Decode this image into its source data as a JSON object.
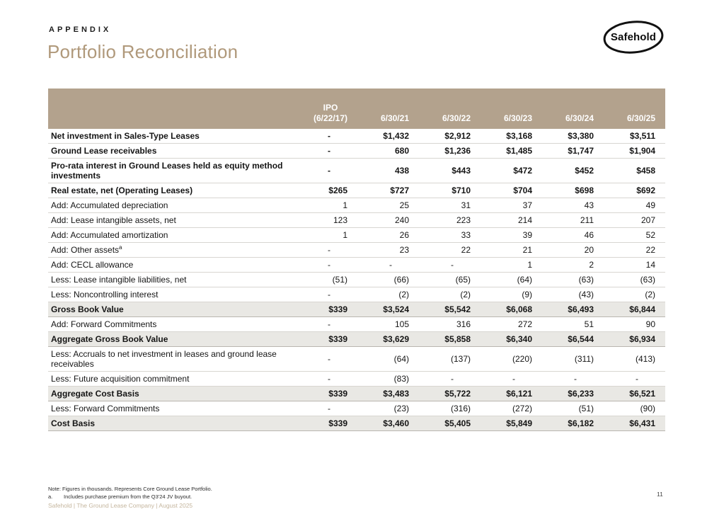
{
  "header": {
    "eyebrow": "APPENDIX",
    "title": "Portfolio Reconciliation",
    "logo_text": "Safehold"
  },
  "colors": {
    "header_bg": "#b3a28d",
    "title_text": "#b0997b",
    "total_row_bg": "#e9e8e4",
    "footer_text": "#c5b69e"
  },
  "table": {
    "columns": [
      {
        "label": ""
      },
      {
        "label": "IPO",
        "sub": "(6/22/17)"
      },
      {
        "label": "6/30/21"
      },
      {
        "label": "6/30/22"
      },
      {
        "label": "6/30/23"
      },
      {
        "label": "6/30/24"
      },
      {
        "label": "6/30/25"
      }
    ],
    "rows": [
      {
        "label": "Net investment in Sales-Type Leases",
        "style": "bold",
        "values": [
          "-",
          "$1,432",
          "$2,912",
          "$3,168",
          "$3,380",
          "$3,511"
        ]
      },
      {
        "label": "Ground Lease receivables",
        "style": "bold",
        "values": [
          "-",
          "680",
          "$1,236",
          "$1,485",
          "$1,747",
          "$1,904"
        ]
      },
      {
        "label": "Pro-rata interest in Ground Leases held as equity method investments",
        "style": "bold",
        "values": [
          "-",
          "438",
          "$443",
          "$472",
          "$452",
          "$458"
        ]
      },
      {
        "label": "Real estate, net (Operating Leases)",
        "style": "bold",
        "values": [
          "$265",
          "$727",
          "$710",
          "$704",
          "$698",
          "$692"
        ]
      },
      {
        "label": "Add: Accumulated depreciation",
        "values": [
          "1",
          "25",
          "31",
          "37",
          "43",
          "49"
        ]
      },
      {
        "label": "Add: Lease intangible assets, net",
        "values": [
          "123",
          "240",
          "223",
          "214",
          "211",
          "207"
        ]
      },
      {
        "label": "Add: Accumulated amortization",
        "values": [
          "1",
          "26",
          "33",
          "39",
          "46",
          "52"
        ]
      },
      {
        "label": "Add: Other assets",
        "sup": "a",
        "values": [
          "-",
          "23",
          "22",
          "21",
          "20",
          "22"
        ]
      },
      {
        "label": "Add: CECL allowance",
        "values": [
          "-",
          "-",
          "-",
          "1",
          "2",
          "14"
        ]
      },
      {
        "label": "Less: Lease intangible liabilities, net",
        "values": [
          "(51)",
          "(66)",
          "(65)",
          "(64)",
          "(63)",
          "(63)"
        ]
      },
      {
        "label": "Less: Noncontrolling interest",
        "values": [
          "-",
          "(2)",
          "(2)",
          "(9)",
          "(43)",
          "(2)"
        ]
      },
      {
        "label": "Gross Book Value",
        "style": "total",
        "values": [
          "$339",
          "$3,524",
          "$5,542",
          "$6,068",
          "$6,493",
          "$6,844"
        ]
      },
      {
        "label": "Add: Forward Commitments",
        "values": [
          "-",
          "105",
          "316",
          "272",
          "51",
          "90"
        ]
      },
      {
        "label": "Aggregate Gross Book Value",
        "style": "total",
        "values": [
          "$339",
          "$3,629",
          "$5,858",
          "$6,340",
          "$6,544",
          "$6,934"
        ]
      },
      {
        "label": "Less: Accruals to net investment in leases and ground lease receivables",
        "values": [
          "-",
          "(64)",
          "(137)",
          "(220)",
          "(311)",
          "(413)"
        ]
      },
      {
        "label": "Less: Future acquisition commitment",
        "values": [
          "-",
          "(83)",
          "-",
          "-",
          "-",
          "-"
        ]
      },
      {
        "label": "Aggregate Cost Basis",
        "style": "total",
        "values": [
          "$339",
          "$3,483",
          "$5,722",
          "$6,121",
          "$6,233",
          "$6,521"
        ]
      },
      {
        "label": "Less: Forward Commitments",
        "values": [
          "-",
          "(23)",
          "(316)",
          "(272)",
          "(51)",
          "(90)"
        ]
      },
      {
        "label": "Cost Basis",
        "style": "total",
        "values": [
          "$339",
          "$3,460",
          "$5,405",
          "$5,849",
          "$6,182",
          "$6,431"
        ]
      }
    ]
  },
  "footnotes": {
    "note": "Note: Figures in thousands. Represents Core Ground Lease Portfolio.",
    "a_label": "a.",
    "a_text": "Includes purchase premium from the Q3'24 JV buyout."
  },
  "footer": {
    "brand_line": "Safehold | The Ground Lease Company | August 2025",
    "page_number": "11"
  }
}
